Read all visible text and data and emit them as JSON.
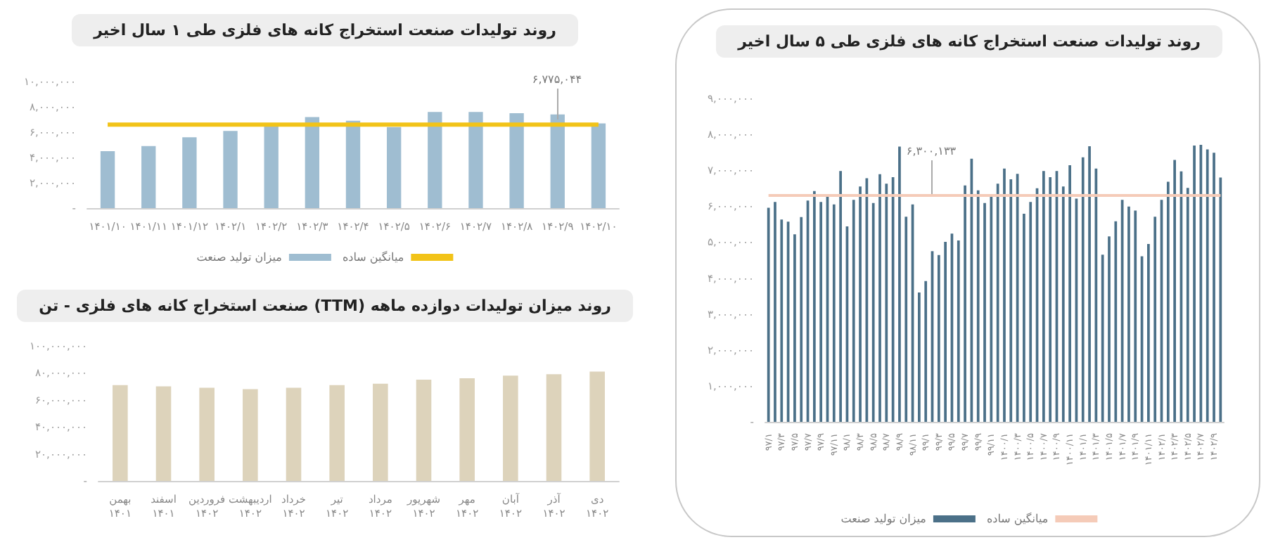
{
  "chart_data": [
    {
      "type": "bar",
      "title": "روند تولیدات صنعت استخراج کانه های فلزی طی ۱ سال اخیر",
      "categories": [
        "۱۴۰۱/۱۰",
        "۱۴۰۱/۱۱",
        "۱۴۰۱/۱۲",
        "۱۴۰۲/۱",
        "۱۴۰۲/۲",
        "۱۴۰۲/۳",
        "۱۴۰۲/۴",
        "۱۴۰۲/۵",
        "۱۴۰۲/۶",
        "۱۴۰۲/۷",
        "۱۴۰۲/۸",
        "۱۴۰۲/۹",
        "۱۴۰۲/۱۰"
      ],
      "series": [
        {
          "name": "میزان تولید صنعت",
          "color": "#9fbdd1",
          "values": [
            4500000,
            4900000,
            5600000,
            6100000,
            6500000,
            7200000,
            6900000,
            6400000,
            7600000,
            7600000,
            7500000,
            7400000,
            6700000
          ]
        },
        {
          "name": "میانگین ساده",
          "type": "line",
          "color": "#f2c318",
          "values": [
            6600000,
            6600000,
            6600000,
            6600000,
            6600000,
            6600000,
            6600000,
            6600000,
            6600000,
            6600000,
            6600000,
            6600000,
            6600000
          ]
        }
      ],
      "ylim": [
        0,
        10000000
      ],
      "yticks": [
        {
          "value": 0,
          "label": "-"
        },
        {
          "value": 2000000,
          "label": "۲,۰۰۰,۰۰۰"
        },
        {
          "value": 4000000,
          "label": "۴,۰۰۰,۰۰۰"
        },
        {
          "value": 6000000,
          "label": "۶,۰۰۰,۰۰۰"
        },
        {
          "value": 8000000,
          "label": "۸,۰۰۰,۰۰۰"
        },
        {
          "value": 10000000,
          "label": "۱۰,۰۰۰,۰۰۰"
        }
      ],
      "annotations": [
        "۶,۷۷۵,۰۴۴"
      ],
      "legend": "bottom"
    },
    {
      "type": "bar",
      "title": "روند میزان تولیدات دوازده ماهه (TTM) صنعت استخراج کانه های فلزی - تن",
      "categories": [
        "بهمن ۱۴۰۱",
        "اسفند ۱۴۰۱",
        "فروردین ۱۴۰۲",
        "اردیبهشت ۱۴۰۲",
        "خرداد ۱۴۰۲",
        "تیر ۱۴۰۲",
        "مرداد ۱۴۰۲",
        "شهریور ۱۴۰۲",
        "مهر ۱۴۰۲",
        "آبان ۱۴۰۲",
        "آذر ۱۴۰۲",
        "دی ۱۴۰۲"
      ],
      "color": "#ddd3bb",
      "values": [
        71000000,
        70000000,
        69000000,
        68000000,
        69000000,
        71000000,
        72000000,
        75000000,
        76000000,
        78000000,
        79000000,
        81000000
      ],
      "ylim": [
        0,
        100000000
      ],
      "yticks": [
        {
          "value": 0,
          "label": "-"
        },
        {
          "value": 20000000,
          "label": "۲۰,۰۰۰,۰۰۰"
        },
        {
          "value": 40000000,
          "label": "۴۰,۰۰۰,۰۰۰"
        },
        {
          "value": 60000000,
          "label": "۶۰,۰۰۰,۰۰۰"
        },
        {
          "value": 80000000,
          "label": "۸۰,۰۰۰,۰۰۰"
        },
        {
          "value": 100000000,
          "label": "۱۰۰,۰۰۰,۰۰۰"
        }
      ]
    },
    {
      "type": "bar",
      "title": "روند تولیدات صنعت استخراج کانه های فلزی طی ۵ سال اخیر",
      "categories": [
        "۹۷/۱",
        null,
        "۹۷/۳",
        null,
        "۹۷/۵",
        null,
        "۹۷/۷",
        null,
        "۹۷/۹",
        null,
        "۹۷/۱۱",
        null,
        "۹۸/۱",
        null,
        "۹۸/۳",
        null,
        "۹۸/۵",
        null,
        "۹۸/۷",
        null,
        "۹۸/۹",
        null,
        "۹۸/۱۱",
        null,
        "۹۹/۱",
        null,
        "۹۹/۳",
        null,
        "۹۹/۵",
        null,
        "۹۹/۷",
        null,
        "۹۹/۹",
        null,
        "۹۹/۱۱",
        null,
        "۱۴۰۰/۱",
        null,
        "۱۴۰۰/۳",
        null,
        "۱۴۰۰/۵",
        null,
        "۱۴۰۰/۷",
        null,
        "۱۴۰۰/۹",
        null,
        "۱۴۰۰/۱۱",
        null,
        "۱۴۰۱/۱",
        null,
        "۱۴۰۱/۳",
        null,
        "۱۴۰۱/۵",
        null,
        "۱۴۰۱/۷",
        null,
        "۱۴۰۱/۹",
        null,
        "۱۴۰۱/۱۱",
        null,
        "۱۴۰۲/۱",
        null,
        "۱۴۰۲/۳",
        null,
        "۱۴۰۲/۵",
        null,
        "۱۴۰۲/۷",
        null,
        "۱۴۰۲/۹",
        null
      ],
      "series": [
        {
          "name": "میزان تولید صنعت",
          "color": "#4b7088",
          "values": [
            5960000,
            6120000,
            5630000,
            5570000,
            5220000,
            5700000,
            6160000,
            6420000,
            6120000,
            6330000,
            6050000,
            6980000,
            5440000,
            6180000,
            6550000,
            6780000,
            6090000,
            6890000,
            6630000,
            6810000,
            7660000,
            5710000,
            6050000,
            3600000,
            3920000,
            4750000,
            4640000,
            5010000,
            5240000,
            5050000,
            6580000,
            7320000,
            6440000,
            6090000,
            6340000,
            6630000,
            7050000,
            6750000,
            6900000,
            5790000,
            6120000,
            6500000,
            6980000,
            6810000,
            6980000,
            6550000,
            7140000,
            6210000,
            7360000,
            7670000,
            7050000,
            4650000,
            5160000,
            5580000,
            6180000,
            5990000,
            5880000,
            4610000,
            4950000,
            5710000,
            6180000,
            6680000,
            7290000,
            6970000,
            6510000,
            7690000,
            7710000,
            7580000,
            7490000,
            6800000
          ]
        },
        {
          "name": "میانگین ساده",
          "type": "line",
          "color": "#f5cbb8",
          "values": [
            6300000,
            6300000,
            6300000,
            6300000,
            6300000,
            6300000,
            6300000,
            6300000,
            6300000,
            6300000,
            6300000,
            6300000,
            6300000,
            6300000,
            6300000,
            6300000,
            6300000,
            6300000,
            6300000,
            6300000,
            6300000,
            6300000,
            6300000,
            6300000,
            6300000,
            6300000,
            6300000,
            6300000,
            6300000,
            6300000,
            6300000,
            6300000,
            6300000,
            6300000,
            6300000,
            6300000,
            6300000,
            6300000,
            6300000,
            6300000,
            6300000,
            6300000,
            6300000,
            6300000,
            6300000,
            6300000,
            6300000,
            6300000,
            6300000,
            6300000,
            6300000,
            6300000,
            6300000,
            6300000,
            6300000,
            6300000,
            6300000,
            6300000,
            6300000,
            6300000,
            6300000,
            6300000,
            6300000,
            6300000,
            6300000,
            6300000,
            6300000,
            6300000,
            6300000,
            6300000
          ]
        }
      ],
      "ylim": [
        0,
        9000000
      ],
      "yticks": [
        {
          "value": 0,
          "label": "-"
        },
        {
          "value": 1000000,
          "label": "۱,۰۰۰,۰۰۰"
        },
        {
          "value": 2000000,
          "label": "۲,۰۰۰,۰۰۰"
        },
        {
          "value": 3000000,
          "label": "۳,۰۰۰,۰۰۰"
        },
        {
          "value": 4000000,
          "label": "۴,۰۰۰,۰۰۰"
        },
        {
          "value": 5000000,
          "label": "۵,۰۰۰,۰۰۰"
        },
        {
          "value": 6000000,
          "label": "۶,۰۰۰,۰۰۰"
        },
        {
          "value": 7000000,
          "label": "۷,۰۰۰,۰۰۰"
        },
        {
          "value": 8000000,
          "label": "۸,۰۰۰,۰۰۰"
        },
        {
          "value": 9000000,
          "label": "۹,۰۰۰,۰۰۰"
        }
      ],
      "annotations": [
        "۶,۳۰۰,۱۳۳"
      ],
      "legend": "bottom"
    }
  ]
}
